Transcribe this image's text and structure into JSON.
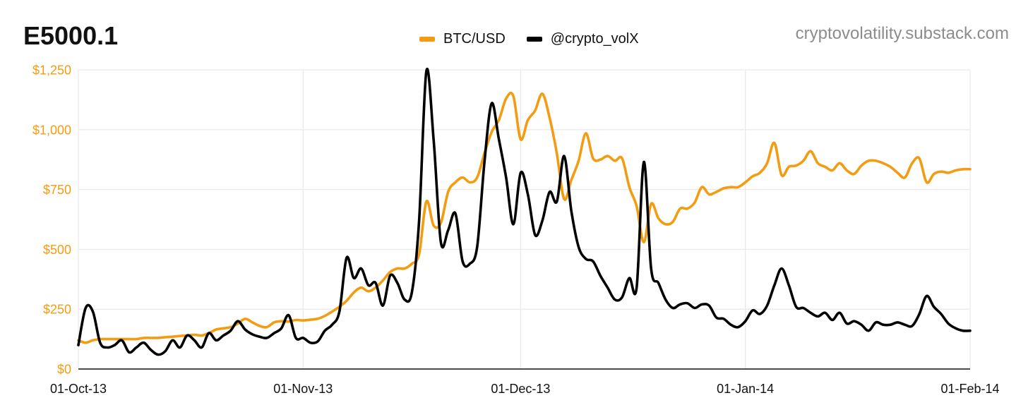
{
  "colors": {
    "btc": "#f39c12",
    "vol": "#000000",
    "grid": "#eaeaea",
    "axis": "#111111",
    "ytick": "#f39c12"
  },
  "header": {
    "title": "E5000.1",
    "source": "cryptovolatility.substack.com"
  },
  "legend": {
    "items": [
      {
        "label": "BTC/USD",
        "color": "#f39c12"
      },
      {
        "label": "@crypto_volX",
        "color": "#000000"
      }
    ]
  },
  "chart_data": {
    "type": "line",
    "title": "E5000.1",
    "xlabel": "",
    "ylabel": "",
    "ylim": [
      0,
      1250
    ],
    "xlim": [
      0,
      123
    ],
    "grid": true,
    "legend_position": "top-center",
    "y_ticks": [
      {
        "value": 0,
        "label": "$0"
      },
      {
        "value": 250,
        "label": "$250"
      },
      {
        "value": 500,
        "label": "$500"
      },
      {
        "value": 750,
        "label": "$750"
      },
      {
        "value": 1000,
        "label": "$1,000"
      },
      {
        "value": 1250,
        "label": "$1,250"
      }
    ],
    "x_ticks": [
      {
        "day": 0,
        "label": "01-Oct-13"
      },
      {
        "day": 31,
        "label": "01-Nov-13"
      },
      {
        "day": 61,
        "label": "01-Dec-13"
      },
      {
        "day": 92,
        "label": "01-Jan-14"
      },
      {
        "day": 123,
        "label": "01-Feb-14"
      }
    ],
    "series": [
      {
        "name": "BTC/USD",
        "color": "#f39c12",
        "points": [
          [
            0,
            120
          ],
          [
            1,
            110
          ],
          [
            2,
            120
          ],
          [
            3,
            125
          ],
          [
            4,
            125
          ],
          [
            5,
            125
          ],
          [
            6,
            125
          ],
          [
            7,
            125
          ],
          [
            8,
            125
          ],
          [
            9,
            130
          ],
          [
            10,
            130
          ],
          [
            11,
            130
          ],
          [
            12,
            133
          ],
          [
            13,
            135
          ],
          [
            14,
            138
          ],
          [
            15,
            140
          ],
          [
            16,
            143
          ],
          [
            17,
            140
          ],
          [
            18,
            150
          ],
          [
            19,
            165
          ],
          [
            20,
            170
          ],
          [
            21,
            175
          ],
          [
            22,
            190
          ],
          [
            23,
            210
          ],
          [
            24,
            195
          ],
          [
            25,
            180
          ],
          [
            26,
            175
          ],
          [
            27,
            195
          ],
          [
            28,
            200
          ],
          [
            29,
            198
          ],
          [
            30,
            205
          ],
          [
            31,
            203
          ],
          [
            32,
            206
          ],
          [
            33,
            210
          ],
          [
            34,
            222
          ],
          [
            35,
            240
          ],
          [
            36,
            260
          ],
          [
            37,
            285
          ],
          [
            38,
            320
          ],
          [
            39,
            340
          ],
          [
            40,
            325
          ],
          [
            41,
            340
          ],
          [
            42,
            370
          ],
          [
            43,
            405
          ],
          [
            44,
            420
          ],
          [
            45,
            420
          ],
          [
            46,
            440
          ],
          [
            47,
            480
          ],
          [
            48,
            700
          ],
          [
            49,
            600
          ],
          [
            50,
            610
          ],
          [
            51,
            740
          ],
          [
            52,
            780
          ],
          [
            53,
            800
          ],
          [
            54,
            780
          ],
          [
            55,
            800
          ],
          [
            56,
            900
          ],
          [
            57,
            990
          ],
          [
            58,
            1040
          ],
          [
            59,
            1130
          ],
          [
            60,
            1140
          ],
          [
            61,
            960
          ],
          [
            62,
            1040
          ],
          [
            63,
            1080
          ],
          [
            64,
            1150
          ],
          [
            65,
            1050
          ],
          [
            66,
            900
          ],
          [
            67,
            710
          ],
          [
            68,
            790
          ],
          [
            69,
            870
          ],
          [
            70,
            985
          ],
          [
            71,
            880
          ],
          [
            72,
            875
          ],
          [
            73,
            890
          ],
          [
            74,
            870
          ],
          [
            75,
            880
          ],
          [
            76,
            760
          ],
          [
            77,
            680
          ],
          [
            78,
            530
          ],
          [
            79,
            690
          ],
          [
            80,
            630
          ],
          [
            81,
            605
          ],
          [
            82,
            615
          ],
          [
            83,
            670
          ],
          [
            84,
            670
          ],
          [
            85,
            695
          ],
          [
            86,
            760
          ],
          [
            87,
            730
          ],
          [
            88,
            740
          ],
          [
            89,
            755
          ],
          [
            90,
            760
          ],
          [
            91,
            760
          ],
          [
            92,
            780
          ],
          [
            93,
            805
          ],
          [
            94,
            820
          ],
          [
            95,
            860
          ],
          [
            96,
            945
          ],
          [
            97,
            810
          ],
          [
            98,
            845
          ],
          [
            99,
            850
          ],
          [
            100,
            870
          ],
          [
            101,
            910
          ],
          [
            102,
            860
          ],
          [
            103,
            845
          ],
          [
            104,
            830
          ],
          [
            105,
            860
          ],
          [
            106,
            830
          ],
          [
            107,
            815
          ],
          [
            108,
            850
          ],
          [
            109,
            870
          ],
          [
            110,
            870
          ],
          [
            111,
            860
          ],
          [
            112,
            845
          ],
          [
            113,
            820
          ],
          [
            114,
            800
          ],
          [
            115,
            860
          ],
          [
            116,
            880
          ],
          [
            117,
            780
          ],
          [
            118,
            815
          ],
          [
            119,
            825
          ],
          [
            120,
            820
          ],
          [
            121,
            830
          ],
          [
            122,
            835
          ],
          [
            123,
            835
          ]
        ]
      },
      {
        "name": "@crypto_volX",
        "color": "#000000",
        "points": [
          [
            0,
            100
          ],
          [
            1,
            255
          ],
          [
            2,
            240
          ],
          [
            3,
            110
          ],
          [
            4,
            90
          ],
          [
            5,
            100
          ],
          [
            6,
            120
          ],
          [
            7,
            70
          ],
          [
            8,
            90
          ],
          [
            9,
            110
          ],
          [
            10,
            80
          ],
          [
            11,
            60
          ],
          [
            12,
            75
          ],
          [
            13,
            120
          ],
          [
            14,
            90
          ],
          [
            15,
            140
          ],
          [
            16,
            120
          ],
          [
            17,
            90
          ],
          [
            18,
            150
          ],
          [
            19,
            120
          ],
          [
            20,
            140
          ],
          [
            21,
            160
          ],
          [
            22,
            200
          ],
          [
            23,
            165
          ],
          [
            24,
            145
          ],
          [
            25,
            135
          ],
          [
            26,
            130
          ],
          [
            27,
            150
          ],
          [
            28,
            170
          ],
          [
            29,
            225
          ],
          [
            30,
            130
          ],
          [
            31,
            130
          ],
          [
            32,
            110
          ],
          [
            33,
            115
          ],
          [
            34,
            160
          ],
          [
            35,
            185
          ],
          [
            36,
            240
          ],
          [
            37,
            465
          ],
          [
            38,
            380
          ],
          [
            39,
            420
          ],
          [
            40,
            350
          ],
          [
            41,
            360
          ],
          [
            42,
            265
          ],
          [
            43,
            390
          ],
          [
            44,
            360
          ],
          [
            45,
            290
          ],
          [
            46,
            320
          ],
          [
            47,
            620
          ],
          [
            48,
            1245
          ],
          [
            49,
            960
          ],
          [
            50,
            530
          ],
          [
            51,
            580
          ],
          [
            52,
            650
          ],
          [
            53,
            450
          ],
          [
            54,
            440
          ],
          [
            55,
            510
          ],
          [
            56,
            860
          ],
          [
            57,
            1110
          ],
          [
            58,
            960
          ],
          [
            59,
            800
          ],
          [
            60,
            605
          ],
          [
            61,
            820
          ],
          [
            62,
            730
          ],
          [
            63,
            560
          ],
          [
            64,
            620
          ],
          [
            65,
            740
          ],
          [
            66,
            700
          ],
          [
            67,
            890
          ],
          [
            68,
            660
          ],
          [
            69,
            510
          ],
          [
            70,
            460
          ],
          [
            71,
            450
          ],
          [
            72,
            390
          ],
          [
            73,
            340
          ],
          [
            74,
            290
          ],
          [
            75,
            300
          ],
          [
            76,
            380
          ],
          [
            77,
            340
          ],
          [
            78,
            865
          ],
          [
            79,
            420
          ],
          [
            80,
            360
          ],
          [
            81,
            290
          ],
          [
            82,
            255
          ],
          [
            83,
            270
          ],
          [
            84,
            275
          ],
          [
            85,
            255
          ],
          [
            86,
            270
          ],
          [
            87,
            265
          ],
          [
            88,
            215
          ],
          [
            89,
            210
          ],
          [
            90,
            185
          ],
          [
            91,
            175
          ],
          [
            92,
            200
          ],
          [
            93,
            245
          ],
          [
            94,
            230
          ],
          [
            95,
            265
          ],
          [
            96,
            350
          ],
          [
            97,
            420
          ],
          [
            98,
            350
          ],
          [
            99,
            260
          ],
          [
            100,
            255
          ],
          [
            101,
            235
          ],
          [
            102,
            220
          ],
          [
            103,
            235
          ],
          [
            104,
            205
          ],
          [
            105,
            235
          ],
          [
            106,
            190
          ],
          [
            107,
            200
          ],
          [
            108,
            185
          ],
          [
            109,
            160
          ],
          [
            110,
            195
          ],
          [
            111,
            185
          ],
          [
            112,
            185
          ],
          [
            113,
            195
          ],
          [
            114,
            185
          ],
          [
            115,
            180
          ],
          [
            116,
            230
          ],
          [
            117,
            305
          ],
          [
            118,
            260
          ],
          [
            119,
            230
          ],
          [
            120,
            190
          ],
          [
            121,
            170
          ],
          [
            122,
            160
          ],
          [
            123,
            160
          ]
        ]
      }
    ]
  }
}
